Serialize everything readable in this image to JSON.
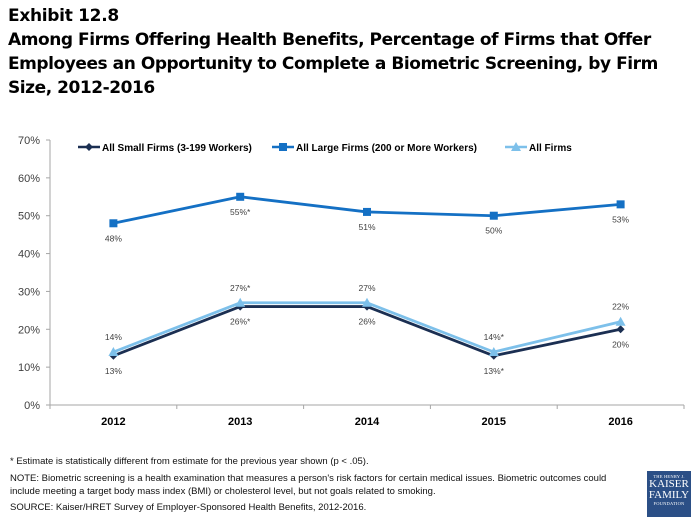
{
  "header": {
    "exhibit": "Exhibit 12.8",
    "title": "Among Firms Offering Health Benefits, Percentage of Firms that Offer Employees an Opportunity to Complete a Biometric Screening, by Firm Size, 2012-2016"
  },
  "chart_data": {
    "type": "line",
    "title": "Among Firms Offering Health Benefits, Percentage of Firms that Offer Employees an Opportunity to Complete a Biometric Screening, by Firm Size, 2012-2016",
    "xlabel": "",
    "ylabel": "",
    "categories": [
      "2012",
      "2013",
      "2014",
      "2015",
      "2016"
    ],
    "ylim": [
      0,
      70
    ],
    "yticks": [
      0,
      10,
      20,
      30,
      40,
      50,
      60,
      70
    ],
    "ytick_labels": [
      "0%",
      "10%",
      "20%",
      "30%",
      "40%",
      "50%",
      "60%",
      "70%"
    ],
    "grid": false,
    "legend_position": "top",
    "series": [
      {
        "name": "All Small Firms (3-199 Workers)",
        "color": "#1b2f52",
        "marker": "diamond",
        "values": [
          13,
          26,
          26,
          13,
          20
        ],
        "labels": [
          "13%",
          "26%*",
          "26%",
          "13%*",
          "20%"
        ],
        "label_position": "below"
      },
      {
        "name": "All Large Firms (200 or More Workers)",
        "color": "#1470c4",
        "marker": "square",
        "values": [
          48,
          55,
          51,
          50,
          53
        ],
        "labels": [
          "48%",
          "55%*",
          "51%",
          "50%",
          "53%"
        ],
        "label_position": "below"
      },
      {
        "name": "All Firms",
        "color": "#7dc0ea",
        "marker": "triangle",
        "values": [
          14,
          27,
          27,
          14,
          22
        ],
        "labels": [
          "14%",
          "27%*",
          "27%",
          "14%*",
          "22%"
        ],
        "label_position": "above"
      }
    ]
  },
  "footer": {
    "footnote": "* Estimate is statistically different from estimate for the previous year shown (p <  .05).",
    "note": "NOTE:  Biometric screening is a health examination that measures a person's risk factors for certain medical issues. Biometric outcomes could include meeting a target body mass index (BMI) or cholesterol level, but not goals related to smoking.",
    "source": "SOURCE: Kaiser/HRET Survey of Employer-Sponsored Health Benefits, 2012-2016."
  },
  "logo": {
    "line1": "THE HENRY J.",
    "line2": "KAISER",
    "line3": "FAMILY",
    "line4": "FOUNDATION"
  }
}
